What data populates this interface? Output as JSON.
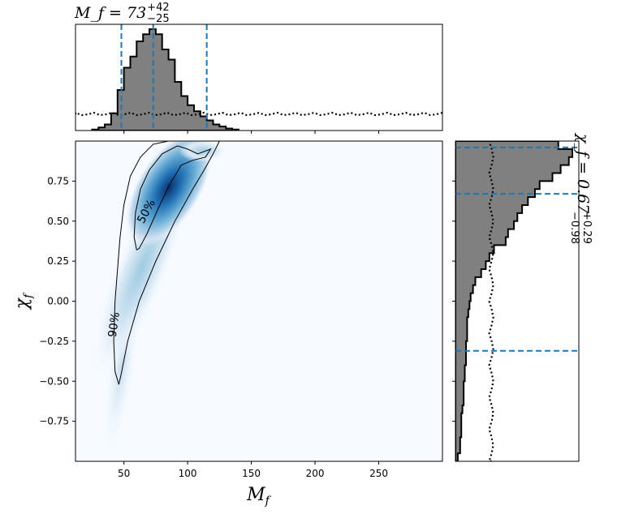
{
  "chart_data": [
    {
      "type": "heatmap",
      "xlabel": "M_f",
      "ylabel": "χ_f",
      "xlim": [
        12,
        300
      ],
      "ylim": [
        -1.0,
        1.0
      ],
      "xticks": [
        50,
        100,
        150,
        200,
        250
      ],
      "yticks": [
        -0.75,
        -0.5,
        -0.25,
        0.0,
        0.25,
        0.5,
        0.75
      ],
      "ytick_labels": [
        "−0.75",
        "−0.50",
        "−0.25",
        "0.00",
        "0.25",
        "0.50",
        "0.75"
      ],
      "colormap": "Blues",
      "density_peak": {
        "x": 75,
        "y": 0.8
      },
      "contours": [
        {
          "label": "50%",
          "points": [
            [
              60,
              0.32
            ],
            [
              58,
              0.4
            ],
            [
              59,
              0.55
            ],
            [
              63,
              0.7
            ],
            [
              70,
              0.82
            ],
            [
              80,
              0.92
            ],
            [
              92,
              0.97
            ],
            [
              100,
              0.95
            ],
            [
              108,
              0.92
            ],
            [
              118,
              0.95
            ],
            [
              114,
              0.9
            ],
            [
              104,
              0.88
            ],
            [
              95,
              0.85
            ],
            [
              86,
              0.73
            ],
            [
              77,
              0.58
            ],
            [
              68,
              0.42
            ],
            [
              62,
              0.33
            ],
            [
              60,
              0.32
            ]
          ]
        },
        {
          "label": "90%",
          "points": [
            [
              46,
              -0.52
            ],
            [
              43,
              -0.44
            ],
            [
              42,
              -0.25
            ],
            [
              43,
              0.0
            ],
            [
              45,
              0.2
            ],
            [
              47,
              0.4
            ],
            [
              50,
              0.6
            ],
            [
              55,
              0.78
            ],
            [
              63,
              0.9
            ],
            [
              73,
              0.98
            ],
            [
              85,
              1.0
            ],
            [
              125,
              1.0
            ],
            [
              120,
              0.92
            ],
            [
              113,
              0.82
            ],
            [
              104,
              0.7
            ],
            [
              90,
              0.5
            ],
            [
              75,
              0.25
            ],
            [
              62,
              0.0
            ],
            [
              53,
              -0.25
            ],
            [
              48,
              -0.45
            ],
            [
              46,
              -0.52
            ]
          ]
        }
      ]
    },
    {
      "type": "bar",
      "title": "M_f = 73",
      "title_sup": "+42",
      "title_sub": "−25",
      "xlim": [
        12,
        300
      ],
      "bins": [
        [
          25,
          30
        ],
        [
          30,
          35
        ],
        [
          35,
          40
        ],
        [
          40,
          45
        ],
        [
          45,
          50
        ],
        [
          50,
          55
        ],
        [
          55,
          60
        ],
        [
          60,
          65
        ],
        [
          65,
          70
        ],
        [
          70,
          75
        ],
        [
          75,
          80
        ],
        [
          80,
          85
        ],
        [
          85,
          90
        ],
        [
          90,
          95
        ],
        [
          95,
          100
        ],
        [
          100,
          105
        ],
        [
          105,
          110
        ],
        [
          110,
          115
        ],
        [
          115,
          120
        ],
        [
          120,
          125
        ],
        [
          125,
          130
        ],
        [
          130,
          135
        ],
        [
          135,
          140
        ]
      ],
      "values": [
        0.01,
        0.03,
        0.06,
        0.17,
        0.4,
        0.62,
        0.73,
        0.88,
        0.95,
        1.0,
        0.95,
        0.8,
        0.7,
        0.48,
        0.34,
        0.25,
        0.19,
        0.14,
        0.1,
        0.06,
        0.04,
        0.02,
        0.01
      ],
      "prior_level": 0.16,
      "quantile_lines": [
        48,
        73,
        115
      ]
    },
    {
      "type": "bar",
      "orientation": "horizontal",
      "title": "χ_f = 0.67",
      "title_sup": "+0.29",
      "title_sub": "−0.98",
      "ylim": [
        -1.0,
        1.0
      ],
      "bins": [
        [
          -1.0,
          -0.95
        ],
        [
          -0.95,
          -0.9
        ],
        [
          -0.9,
          -0.85
        ],
        [
          -0.85,
          -0.8
        ],
        [
          -0.8,
          -0.75
        ],
        [
          -0.75,
          -0.7
        ],
        [
          -0.7,
          -0.65
        ],
        [
          -0.65,
          -0.6
        ],
        [
          -0.6,
          -0.55
        ],
        [
          -0.55,
          -0.5
        ],
        [
          -0.5,
          -0.45
        ],
        [
          -0.45,
          -0.4
        ],
        [
          -0.4,
          -0.35
        ],
        [
          -0.35,
          -0.3
        ],
        [
          -0.3,
          -0.25
        ],
        [
          -0.25,
          -0.2
        ],
        [
          -0.2,
          -0.15
        ],
        [
          -0.15,
          -0.1
        ],
        [
          -0.1,
          -0.05
        ],
        [
          -0.05,
          0.0
        ],
        [
          0.0,
          0.05
        ],
        [
          0.05,
          0.1
        ],
        [
          0.1,
          0.15
        ],
        [
          0.15,
          0.2
        ],
        [
          0.2,
          0.25
        ],
        [
          0.25,
          0.3
        ],
        [
          0.3,
          0.35
        ],
        [
          0.35,
          0.4
        ],
        [
          0.4,
          0.45
        ],
        [
          0.45,
          0.5
        ],
        [
          0.5,
          0.55
        ],
        [
          0.55,
          0.6
        ],
        [
          0.6,
          0.65
        ],
        [
          0.65,
          0.7
        ],
        [
          0.7,
          0.75
        ],
        [
          0.75,
          0.8
        ],
        [
          0.8,
          0.85
        ],
        [
          0.85,
          0.9
        ],
        [
          0.9,
          0.95
        ],
        [
          0.95,
          1.0
        ]
      ],
      "values": [
        0.02,
        0.04,
        0.04,
        0.05,
        0.05,
        0.05,
        0.06,
        0.07,
        0.07,
        0.07,
        0.08,
        0.08,
        0.09,
        0.09,
        0.09,
        0.1,
        0.1,
        0.1,
        0.11,
        0.12,
        0.13,
        0.15,
        0.17,
        0.22,
        0.26,
        0.29,
        0.33,
        0.43,
        0.45,
        0.5,
        0.53,
        0.57,
        0.62,
        0.68,
        0.72,
        0.83,
        0.9,
        0.97,
        1.0,
        0.88
      ],
      "prior_level": 0.31,
      "quantile_lines": [
        -0.31,
        0.67,
        0.96
      ]
    }
  ],
  "colors": {
    "histogram_fill": "#808080",
    "quantile_line": "#1f77b4",
    "density_low": "#f7fbff",
    "density_high": "#08306b"
  }
}
